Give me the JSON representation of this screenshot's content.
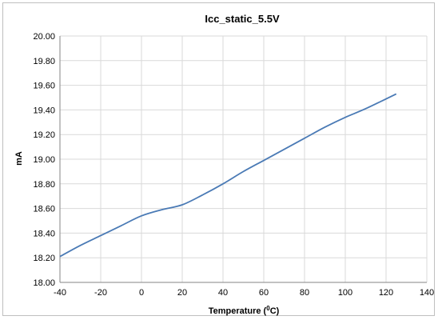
{
  "chart_data": {
    "type": "line",
    "title": "Icc_static_5.5V",
    "xlabel": "Temperature (",
    "xlabel_superscript": "0",
    "xlabel_suffix": "C)",
    "ylabel": "mA",
    "xlim": [
      -40,
      140
    ],
    "ylim": [
      18.0,
      20.0
    ],
    "x_ticks": [
      -40,
      -20,
      0,
      20,
      40,
      60,
      80,
      100,
      120,
      140
    ],
    "y_ticks": [
      18.0,
      18.2,
      18.4,
      18.6,
      18.8,
      19.0,
      19.2,
      19.4,
      19.6,
      19.8,
      20.0
    ],
    "x_tick_labels": [
      "-40",
      "-20",
      "0",
      "20",
      "40",
      "60",
      "80",
      "100",
      "120",
      "140"
    ],
    "y_tick_labels": [
      "18.00",
      "18.20",
      "18.40",
      "18.60",
      "18.80",
      "19.00",
      "19.20",
      "19.40",
      "19.60",
      "19.80",
      "20.00"
    ],
    "grid": true,
    "legend": "none",
    "line_color": "#4a7ab5",
    "series": [
      {
        "x": [
          -40,
          -30,
          -20,
          -10,
          0,
          10,
          20,
          30,
          40,
          50,
          60,
          70,
          80,
          90,
          100,
          110,
          125
        ],
        "values": [
          18.21,
          18.3,
          18.38,
          18.46,
          18.54,
          18.59,
          18.63,
          18.71,
          18.8,
          18.9,
          18.99,
          19.08,
          19.17,
          19.26,
          19.34,
          19.41,
          19.53
        ]
      }
    ]
  }
}
